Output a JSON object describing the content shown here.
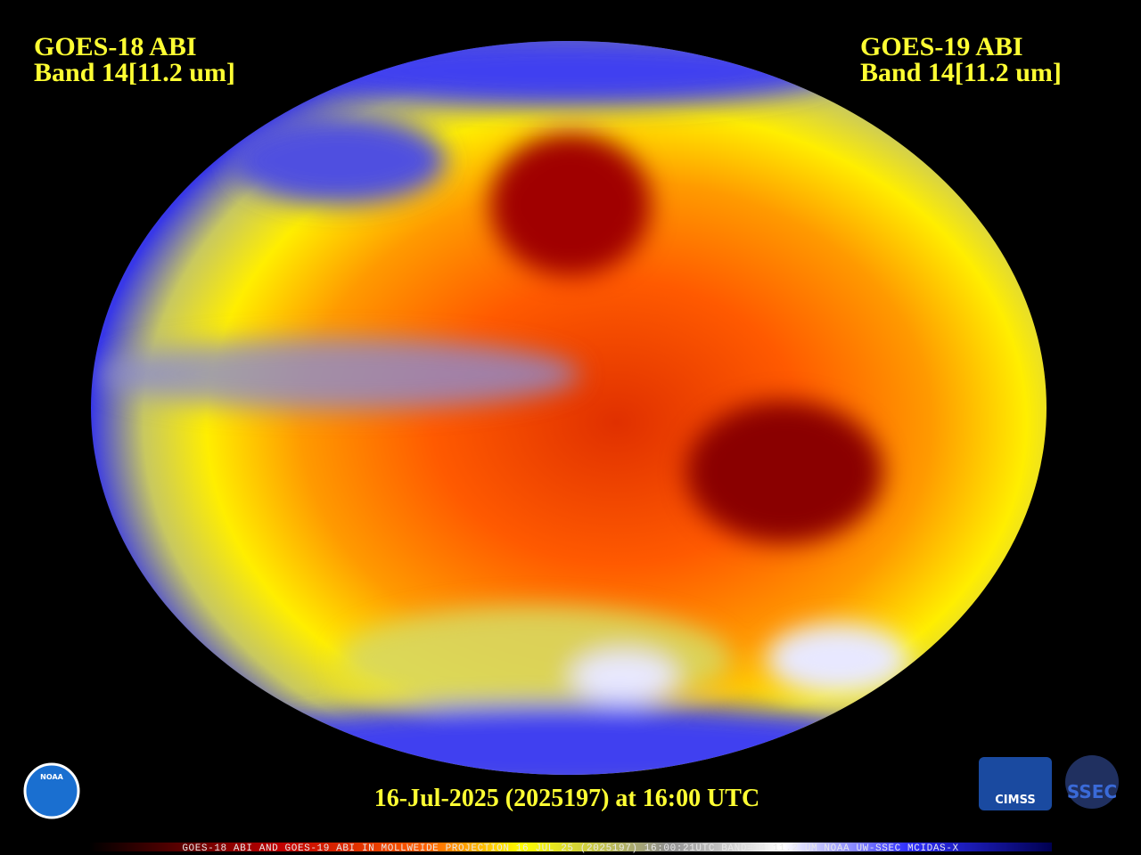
{
  "header": {
    "left": {
      "lines": [
        "GOES-18 ABI",
        "Band 14[11.2 um]"
      ]
    },
    "right": {
      "lines": [
        "GOES-19 ABI",
        "Band 14[11.2 um]"
      ]
    }
  },
  "footer": {
    "timestamp": "16-Jul-2025 (2025197) at 16:00 UTC",
    "caption": "GOES-18 ABI AND GOES-19 ABI IN MOLLWEIDE PROJECTION 16 JUL 25 (2025197) 16:00:21UTC BAND=14 11.2 UM NOAA UW-SSEC MCIDAS-X"
  },
  "logos": {
    "noaa": "NOAA",
    "cimss": "CIMSS",
    "ssec": "SSEC"
  }
}
